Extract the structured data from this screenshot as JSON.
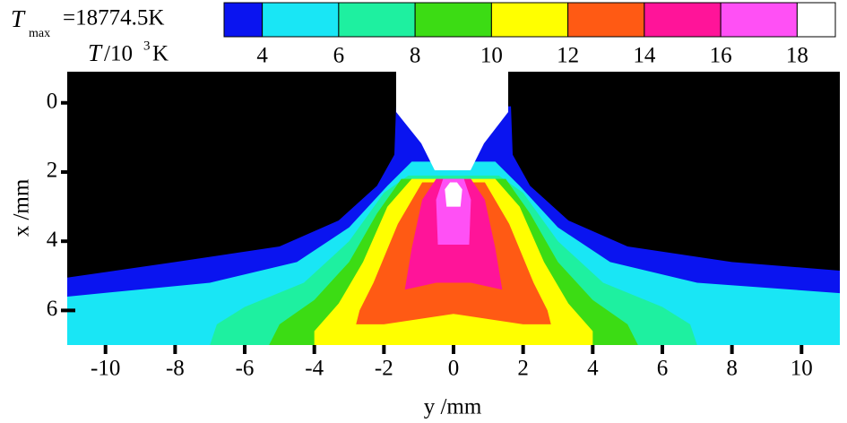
{
  "chart_data": {
    "type": "contour",
    "tmax_label": {
      "symbol": "T",
      "subscript": "max",
      "text": "=18774.5K"
    },
    "unit_label": {
      "symbol": "T",
      "text": "/10",
      "superscript": "3",
      "unit": "K"
    },
    "colorbar": {
      "lim": [
        3,
        19
      ],
      "ticks": [
        4,
        6,
        8,
        10,
        12,
        14,
        16,
        18
      ],
      "colors": [
        "#0a14f0",
        "#19e6f5",
        "#1ef0a0",
        "#3cdc14",
        "#ffff00",
        "#ff5a14",
        "#ff1499",
        "#ff50f5",
        "#ffffff"
      ]
    },
    "xlabel": "y /mm",
    "ylabel": "x /mm",
    "xlim": [
      -11.1,
      11.1
    ],
    "xticks": [
      -10,
      -8,
      -6,
      -4,
      -2,
      0,
      2,
      4,
      6,
      8,
      10
    ],
    "ylim": [
      -0.9,
      7
    ],
    "yticks": [
      0,
      2,
      4,
      6
    ],
    "y_inverted": true,
    "background": "#000000",
    "regions": [
      {
        "color": "#0a14f0",
        "points": [
          [
            -11.1,
            5.05
          ],
          [
            -8,
            4.6
          ],
          [
            -5,
            4.15
          ],
          [
            -3.3,
            3.4
          ],
          [
            -2.2,
            2.4
          ],
          [
            -1.7,
            1.5
          ],
          [
            -1.65,
            0.1
          ],
          [
            1.65,
            0.1
          ],
          [
            1.7,
            1.5
          ],
          [
            2.2,
            2.4
          ],
          [
            3.3,
            3.4
          ],
          [
            5,
            4.15
          ],
          [
            8,
            4.6
          ],
          [
            11.1,
            4.85
          ],
          [
            11.1,
            7
          ],
          [
            -11.1,
            7
          ]
        ]
      },
      {
        "color": "#19e6f5",
        "points": [
          [
            -11.1,
            5.6
          ],
          [
            -7,
            5.2
          ],
          [
            -4.5,
            4.6
          ],
          [
            -3,
            3.6
          ],
          [
            -1.9,
            2.4
          ],
          [
            -1.2,
            1.7
          ],
          [
            1.2,
            1.7
          ],
          [
            1.9,
            2.4
          ],
          [
            3,
            3.6
          ],
          [
            4.5,
            4.6
          ],
          [
            7,
            5.2
          ],
          [
            11.1,
            5.5
          ],
          [
            11.1,
            7
          ],
          [
            -11.1,
            7
          ]
        ]
      },
      {
        "color": "#1ef0a0",
        "points": [
          [
            -7,
            7
          ],
          [
            -6.8,
            6.4
          ],
          [
            -6,
            5.9
          ],
          [
            -4.3,
            5.2
          ],
          [
            -3,
            4
          ],
          [
            -2,
            2.6
          ],
          [
            -1.3,
            2.1
          ],
          [
            1.3,
            2.1
          ],
          [
            2,
            2.6
          ],
          [
            3,
            4
          ],
          [
            4.3,
            5.2
          ],
          [
            6,
            5.9
          ],
          [
            6.8,
            6.4
          ],
          [
            7,
            7
          ]
        ]
      },
      {
        "color": "#3cdc14",
        "points": [
          [
            -5.3,
            7
          ],
          [
            -5,
            6.4
          ],
          [
            -4,
            5.7
          ],
          [
            -3,
            4.6
          ],
          [
            -2.2,
            3.2
          ],
          [
            -1.5,
            2.2
          ],
          [
            1.5,
            2.2
          ],
          [
            2.2,
            3.2
          ],
          [
            3,
            4.6
          ],
          [
            4,
            5.7
          ],
          [
            5,
            6.4
          ],
          [
            5.3,
            7
          ]
        ]
      },
      {
        "color": "#ffff00",
        "points": [
          [
            -4,
            7
          ],
          [
            -4,
            6.6
          ],
          [
            -3.3,
            5.8
          ],
          [
            -2.6,
            4.6
          ],
          [
            -1.9,
            3
          ],
          [
            -1.2,
            2.2
          ],
          [
            1.2,
            2.2
          ],
          [
            1.9,
            3
          ],
          [
            2.6,
            4.6
          ],
          [
            3.3,
            5.8
          ],
          [
            4,
            6.6
          ],
          [
            4,
            7
          ]
        ]
      },
      {
        "color": "#ff5a14",
        "points": [
          [
            -2.8,
            6.4
          ],
          [
            -2.7,
            6
          ],
          [
            -2.3,
            5.2
          ],
          [
            -1.6,
            3.5
          ],
          [
            -0.9,
            2.3
          ],
          [
            0.9,
            2.3
          ],
          [
            1.6,
            3.5
          ],
          [
            2.3,
            5.2
          ],
          [
            2.7,
            6
          ],
          [
            2.8,
            6.4
          ],
          [
            2,
            6.4
          ],
          [
            0,
            6.1
          ],
          [
            -2,
            6.4
          ]
        ]
      },
      {
        "color": "#ff1499",
        "points": [
          [
            -1.4,
            5.4
          ],
          [
            -1.2,
            4.2
          ],
          [
            -0.9,
            2.8
          ],
          [
            -0.5,
            2.2
          ],
          [
            0.5,
            2.2
          ],
          [
            0.9,
            2.8
          ],
          [
            1.2,
            4.2
          ],
          [
            1.4,
            5.4
          ],
          [
            0.5,
            5.2
          ],
          [
            -0.5,
            5.2
          ]
        ]
      },
      {
        "color": "#ff50f5",
        "points": [
          [
            -0.45,
            4.1
          ],
          [
            -0.5,
            2.8
          ],
          [
            -0.3,
            2.2
          ],
          [
            0.3,
            2.2
          ],
          [
            0.5,
            2.8
          ],
          [
            0.45,
            4.1
          ]
        ]
      },
      {
        "color": "#ffffff",
        "points": [
          [
            -0.2,
            3
          ],
          [
            -0.25,
            2.5
          ],
          [
            -0.1,
            2.3
          ],
          [
            0.1,
            2.3
          ],
          [
            0.25,
            2.5
          ],
          [
            0.2,
            3
          ]
        ]
      }
    ]
  }
}
